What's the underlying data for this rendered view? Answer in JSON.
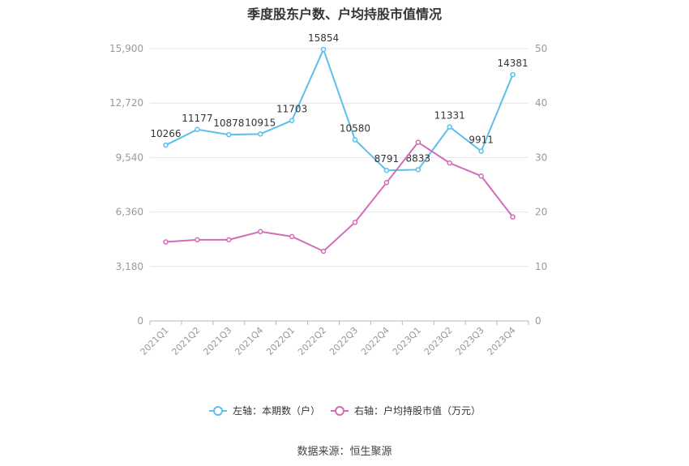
{
  "title": "季度股东户数、户均持股市值情况",
  "source": "数据来源：恒生聚源",
  "chart_data": {
    "type": "line",
    "categories": [
      "2021Q1",
      "2021Q2",
      "2021Q3",
      "2021Q4",
      "2022Q1",
      "2022Q2",
      "2022Q3",
      "2022Q4",
      "2023Q1",
      "2023Q2",
      "2023Q3",
      "2023Q4"
    ],
    "left_axis": {
      "ylim": [
        0,
        15900
      ],
      "ticks": [
        0,
        3180,
        6360,
        9540,
        12720,
        15900
      ],
      "tick_labels": [
        "0",
        "3,180",
        "6,360",
        "9,540",
        "12,720",
        "15,900"
      ]
    },
    "right_axis": {
      "ylim": [
        0,
        50
      ],
      "ticks": [
        0,
        10,
        20,
        30,
        40,
        50
      ],
      "tick_labels": [
        "0",
        "10",
        "20",
        "30",
        "40",
        "50"
      ]
    },
    "series": [
      {
        "name": "左轴：本期数（户）",
        "axis": "left",
        "color": "#5bc0eb",
        "values": [
          10266,
          11177,
          10878,
          10915,
          11703,
          15854,
          10580,
          8791,
          8833,
          11331,
          9911,
          14381
        ],
        "labels": [
          "10266",
          "11177",
          "10878",
          "10915",
          "11703",
          "15854",
          "10580",
          "8791",
          "8833",
          "11331",
          "9911",
          "14381"
        ]
      },
      {
        "name": "右轴：户均持股市值（万元）",
        "axis": "right",
        "color": "#d36bb7",
        "values": [
          14.5,
          14.9,
          14.9,
          16.4,
          15.5,
          12.8,
          18.1,
          25.4,
          32.8,
          29.0,
          26.6,
          19.1
        ]
      }
    ],
    "grid": true,
    "legend_position": "bottom"
  }
}
